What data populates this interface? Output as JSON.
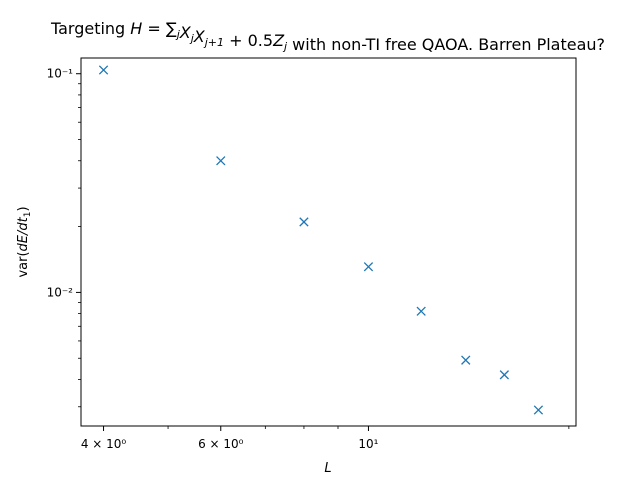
{
  "chart_data": {
    "type": "scatter",
    "title": "Targeting H = ∑j XjXj+1 + 0.5Zj with non-TI free QAOA. Barren Plateau?",
    "title_parts": {
      "prefix": "Targeting ",
      "suffix": " with non-TI free QAOA. Barren Plateau?"
    },
    "xlabel": "L",
    "ylabel": "var(dE/dt1)",
    "xscale": "log",
    "yscale": "log",
    "xlim": [
      3.7,
      20.5
    ],
    "ylim": [
      0.00245,
      0.118
    ],
    "x_ticks": [
      {
        "value": 4,
        "label": "4 × 10⁰"
      },
      {
        "value": 6,
        "label": "6 × 10⁰"
      },
      {
        "value": 10,
        "label": "10¹"
      }
    ],
    "x_minor_ticks": [
      5,
      7,
      8,
      9,
      20
    ],
    "y_ticks": [
      {
        "value": 0.1,
        "label": "10⁻¹"
      },
      {
        "value": 0.01,
        "label": "10⁻²"
      }
    ],
    "grid": false,
    "marker": "x",
    "color": "#1f77b4",
    "x": [
      4,
      6,
      8,
      10,
      12,
      14,
      16,
      18
    ],
    "y": [
      0.104,
      0.04,
      0.021,
      0.0131,
      0.0082,
      0.0049,
      0.0042,
      0.0029
    ]
  }
}
